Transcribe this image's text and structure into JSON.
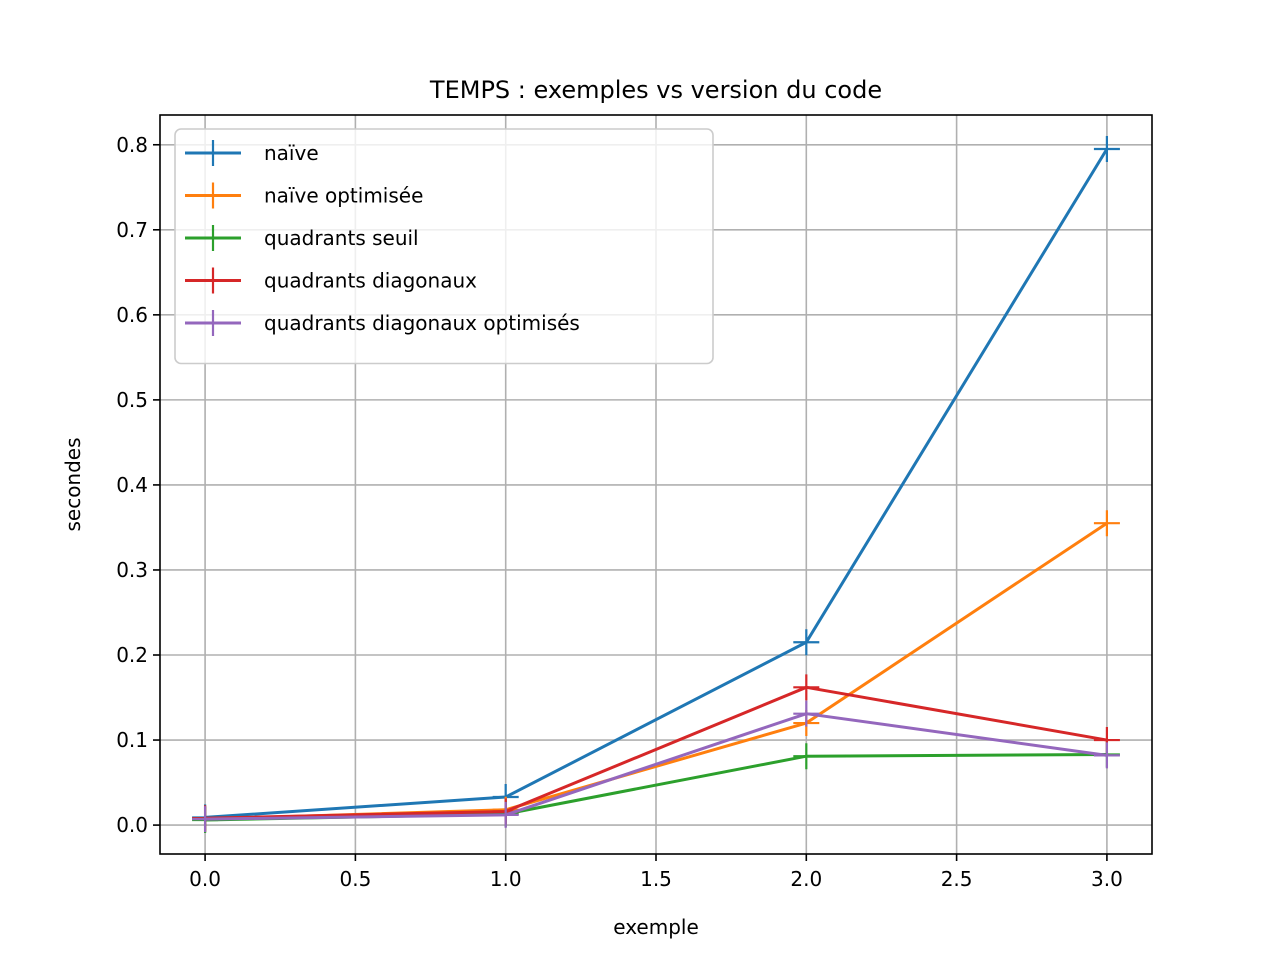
{
  "chart_data": {
    "type": "line",
    "title": "TEMPS : exemples vs version du code",
    "xlabel": "exemple",
    "ylabel": "secondes",
    "xlim": [
      -0.15,
      3.15
    ],
    "ylim": [
      -0.034,
      0.835
    ],
    "xticks": [
      0.0,
      0.5,
      1.0,
      1.5,
      2.0,
      2.5,
      3.0
    ],
    "xtick_labels": [
      "0.0",
      "0.5",
      "1.0",
      "1.5",
      "2.0",
      "2.5",
      "3.0"
    ],
    "yticks": [
      0.0,
      0.1,
      0.2,
      0.3,
      0.4,
      0.5,
      0.6,
      0.7,
      0.8
    ],
    "ytick_labels": [
      "0.0",
      "0.1",
      "0.2",
      "0.3",
      "0.4",
      "0.5",
      "0.6",
      "0.7",
      "0.8"
    ],
    "grid": true,
    "legend_position": "top-left",
    "marker": "+",
    "x": [
      0,
      1,
      2,
      3
    ],
    "series": [
      {
        "name": "naïve",
        "color": "#1f77b4",
        "values": [
          0.009,
          0.033,
          0.215,
          0.795
        ]
      },
      {
        "name": "naïve optimisée",
        "color": "#ff7f0e",
        "values": [
          0.007,
          0.018,
          0.12,
          0.355
        ]
      },
      {
        "name": "quadrants seuil",
        "color": "#2ca02c",
        "values": [
          0.006,
          0.013,
          0.081,
          0.083
        ]
      },
      {
        "name": "quadrants diagonaux",
        "color": "#d62728",
        "values": [
          0.008,
          0.016,
          0.162,
          0.1
        ]
      },
      {
        "name": "quadrants diagonaux optimisés",
        "color": "#9467bd",
        "values": [
          0.007,
          0.012,
          0.131,
          0.082
        ]
      }
    ]
  }
}
